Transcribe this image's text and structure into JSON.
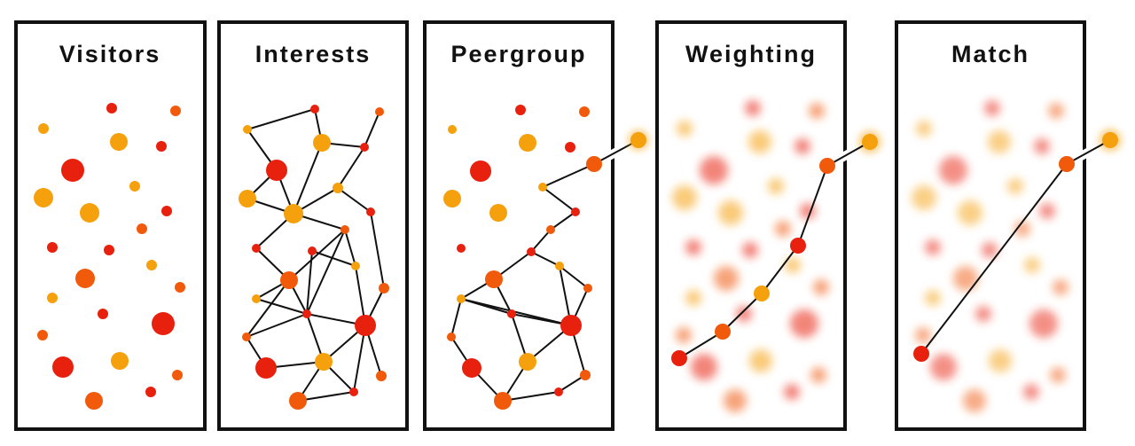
{
  "panels": [
    {
      "title": "Visitors"
    },
    {
      "title": "Interests"
    },
    {
      "title": "Peergroup"
    },
    {
      "title": "Weighting"
    },
    {
      "title": "Match"
    }
  ]
}
